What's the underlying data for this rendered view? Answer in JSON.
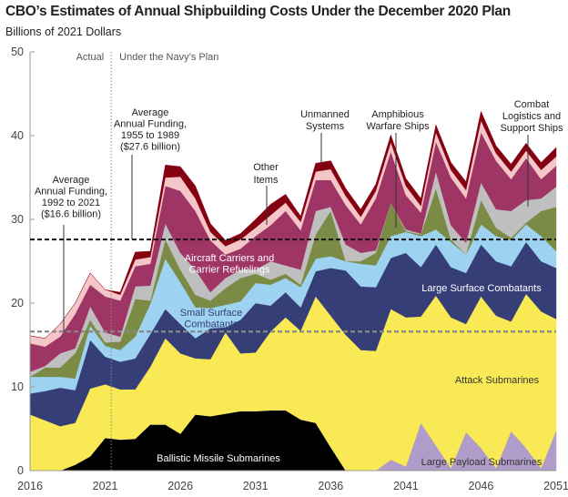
{
  "chart_data": {
    "type": "area",
    "stacked": true,
    "title": "CBO’s Estimates of Annual Shipbuilding Costs Under the December 2020 Plan",
    "ylabel": "Billions of 2021 Dollars",
    "xlabel": "",
    "xlim": [
      2016,
      2051
    ],
    "ylim": [
      0,
      50
    ],
    "x_ticks": [
      "2016",
      "2021",
      "2026",
      "2031",
      "2036",
      "2041",
      "2046",
      "2051"
    ],
    "y_ticks": [
      "0",
      "10",
      "20",
      "30",
      "40",
      "50"
    ],
    "grid": false,
    "x": [
      2016,
      2017,
      2018,
      2019,
      2020,
      2021,
      2022,
      2023,
      2024,
      2025,
      2026,
      2027,
      2028,
      2029,
      2030,
      2031,
      2032,
      2033,
      2034,
      2035,
      2036,
      2037,
      2038,
      2039,
      2040,
      2041,
      2042,
      2043,
      2044,
      2045,
      2046,
      2047,
      2048,
      2049,
      2050,
      2051
    ],
    "series": [
      {
        "name": "Ballistic Missile Submarines",
        "color": "#000000",
        "label_color": "#ffffff",
        "values": [
          0,
          0,
          0,
          0.7,
          1.7,
          3.9,
          3.7,
          3.8,
          5.5,
          5.5,
          4.4,
          6.7,
          6.5,
          6.8,
          7.1,
          7.1,
          7.2,
          7.2,
          6.1,
          5.7,
          2.8,
          0,
          0,
          0,
          0,
          0,
          0,
          0,
          0,
          0,
          0,
          0,
          0,
          0,
          0,
          0
        ]
      },
      {
        "name": "Large Payload Submarines",
        "color": "#b09cc8",
        "label_color": "#333333",
        "values": [
          0,
          0,
          0,
          0,
          0,
          0,
          0,
          0,
          0,
          0,
          0,
          0,
          0,
          0,
          0,
          0,
          0,
          0,
          0,
          0,
          0,
          0,
          0,
          0,
          1.3,
          0.5,
          5.7,
          3.0,
          0.3,
          4.6,
          2.7,
          0.3,
          4.7,
          2.7,
          0.3,
          4.8
        ]
      },
      {
        "name": "Attack Submarines",
        "color": "#f9ea55",
        "label_color": "#333333",
        "values": [
          6.7,
          6.0,
          5.3,
          5.0,
          8.1,
          6.4,
          6.0,
          5.9,
          6.9,
          10.3,
          9.6,
          6.7,
          6.8,
          9.7,
          6.9,
          7.0,
          9.4,
          11.1,
          10.6,
          15.1,
          15.7,
          16.2,
          14.4,
          14.3,
          18.0,
          17.8,
          12.7,
          17.9,
          18.0,
          12.9,
          18.1,
          18.2,
          13.1,
          18.4,
          18.7,
          13.3
        ]
      },
      {
        "name": "Large Surface Combatants",
        "color": "#363e78",
        "label_color": "#ffffff",
        "values": [
          2.5,
          3.5,
          4.6,
          3.9,
          5.8,
          3.3,
          3.3,
          3.7,
          3.9,
          3.5,
          3.5,
          2.4,
          3.7,
          0.6,
          4.0,
          5.9,
          3.1,
          3.0,
          2.8,
          3.0,
          5.7,
          7.7,
          7.6,
          7.6,
          6.1,
          7.7,
          5.9,
          6.1,
          6.0,
          6.1,
          6.2,
          6.5,
          6.6,
          6.2,
          6.0,
          6.1
        ]
      },
      {
        "name": "Small Surface Combatants",
        "color": "#9dd3f0",
        "label_color": "#363e78",
        "values": [
          2.0,
          1.7,
          1.3,
          1.4,
          1.7,
          1.3,
          1.4,
          2.6,
          3.6,
          6.0,
          5.0,
          3.7,
          2.4,
          2.7,
          2.2,
          2.4,
          2.5,
          1.7,
          2.4,
          1.5,
          1.4,
          1.1,
          2.7,
          2.6,
          2.6,
          2.5,
          3.7,
          1.8,
          3.0,
          2.2,
          2.4,
          3.0,
          3.1,
          2.1,
          3.0,
          2.0
        ]
      },
      {
        "name": "Amphibious Warfare Ships",
        "color": "#7b8b45",
        "values": [
          0,
          1.1,
          1.1,
          3.0,
          0.7,
          0.4,
          1.0,
          4.5,
          0.4,
          2.3,
          1.5,
          1.5,
          0.9,
          2.0,
          2.8,
          1.1,
          0.6,
          0.5,
          0.3,
          2.9,
          5.4,
          0,
          0.3,
          1.5,
          4.0,
          0.1,
          0.2,
          4.9,
          0.3,
          0,
          2.9,
          1.0,
          0.3,
          0.2,
          3.0,
          5.3
        ]
      },
      {
        "name": "Combat Logistics and Support Ships",
        "color": "#bfbfbf",
        "values": [
          0.6,
          0.2,
          1.7,
          0.6,
          1.6,
          1.2,
          0.6,
          1.5,
          1.8,
          1.9,
          2.0,
          3.0,
          1.0,
          1.2,
          1.0,
          0.5,
          2.2,
          1.0,
          1.8,
          2.8,
          0.5,
          2.0,
          1.0,
          0.3,
          0,
          0.2,
          0.1,
          2.0,
          1.7,
          1.4,
          2.1,
          2.2,
          3.2,
          2.7,
          1.5,
          2.4
        ]
      },
      {
        "name": "Aircraft Carriers and Carrier Refuelings",
        "color": "#9e3565",
        "label_color": "#ffffff",
        "values": [
          3.4,
          2.3,
          2.0,
          4.1,
          2.6,
          4.3,
          4.3,
          2.4,
          2.6,
          4.5,
          7.4,
          7.0,
          6.2,
          2.8,
          2.5,
          4.0,
          4.3,
          6.5,
          4.7,
          3.7,
          3.2,
          4.7,
          3.4,
          6.2,
          6.1,
          4.1,
          2.5,
          3.6,
          5.7,
          5.3,
          6.0,
          5.8,
          3.8,
          5.0,
          2.3,
          2.5
        ]
      },
      {
        "name": "Other Items",
        "color": "#f4c6c8",
        "values": [
          0.9,
          1.0,
          1.5,
          1.3,
          1.4,
          0.8,
          0.7,
          0.8,
          0.8,
          1.0,
          1.7,
          1.5,
          1.0,
          1.0,
          1.1,
          1.0,
          1.2,
          1.0,
          1.0,
          1.0,
          1.3,
          1.1,
          0.9,
          0.9,
          1.1,
          1.1,
          0.8,
          1.1,
          0.9,
          1.0,
          1.4,
          0.9,
          0.9,
          0.9,
          1.1,
          1.1
        ]
      },
      {
        "name": "Unmanned Systems",
        "color": "#850010",
        "values": [
          0,
          0,
          0,
          0,
          0,
          0,
          0.3,
          0.9,
          0.7,
          1.5,
          1.2,
          1.5,
          1.0,
          0.7,
          0.7,
          1.0,
          1.3,
          1.0,
          0.7,
          1.0,
          1.0,
          0.9,
          0.9,
          0.8,
          0.9,
          0.9,
          0.9,
          0.9,
          0.9,
          1.0,
          1.1,
          0.9,
          0.9,
          0.9,
          0.9,
          1.1
        ]
      }
    ],
    "reference_lines": [
      {
        "value": 27.6,
        "style": "black-dashed",
        "label": [
          "Average",
          "Annual Funding,",
          "1955 to 1989",
          "($27.6 billion)"
        ]
      },
      {
        "value": 16.6,
        "style": "gray-dashed",
        "label": [
          "Average",
          "Annual Funding,",
          "1992 to 2021",
          "($16.6 billion)"
        ]
      }
    ],
    "period_divider": {
      "x": 2021.4,
      "left_label": "Actual",
      "right_label": "Under the Navy’s Plan"
    },
    "annotations": {
      "other_items": [
        "Other",
        "Items"
      ],
      "unmanned": [
        "Unmanned",
        "Systems"
      ],
      "amphibious": [
        "Amphibious",
        "Warfare Ships"
      ],
      "combat_logistics": [
        "Combat",
        "Logistics and",
        "Support Ships"
      ],
      "carriers": [
        "Aircraft Carriers and",
        "Carrier Refuelings"
      ],
      "small_surface": [
        "Small Surface",
        "Combatants"
      ],
      "large_surface": [
        "Large Surface Combatants"
      ],
      "attack": [
        "Attack Submarines"
      ],
      "ballistic": [
        "Ballistic Missile Submarines"
      ],
      "large_payload": [
        "Large Payload Submarines"
      ]
    }
  }
}
